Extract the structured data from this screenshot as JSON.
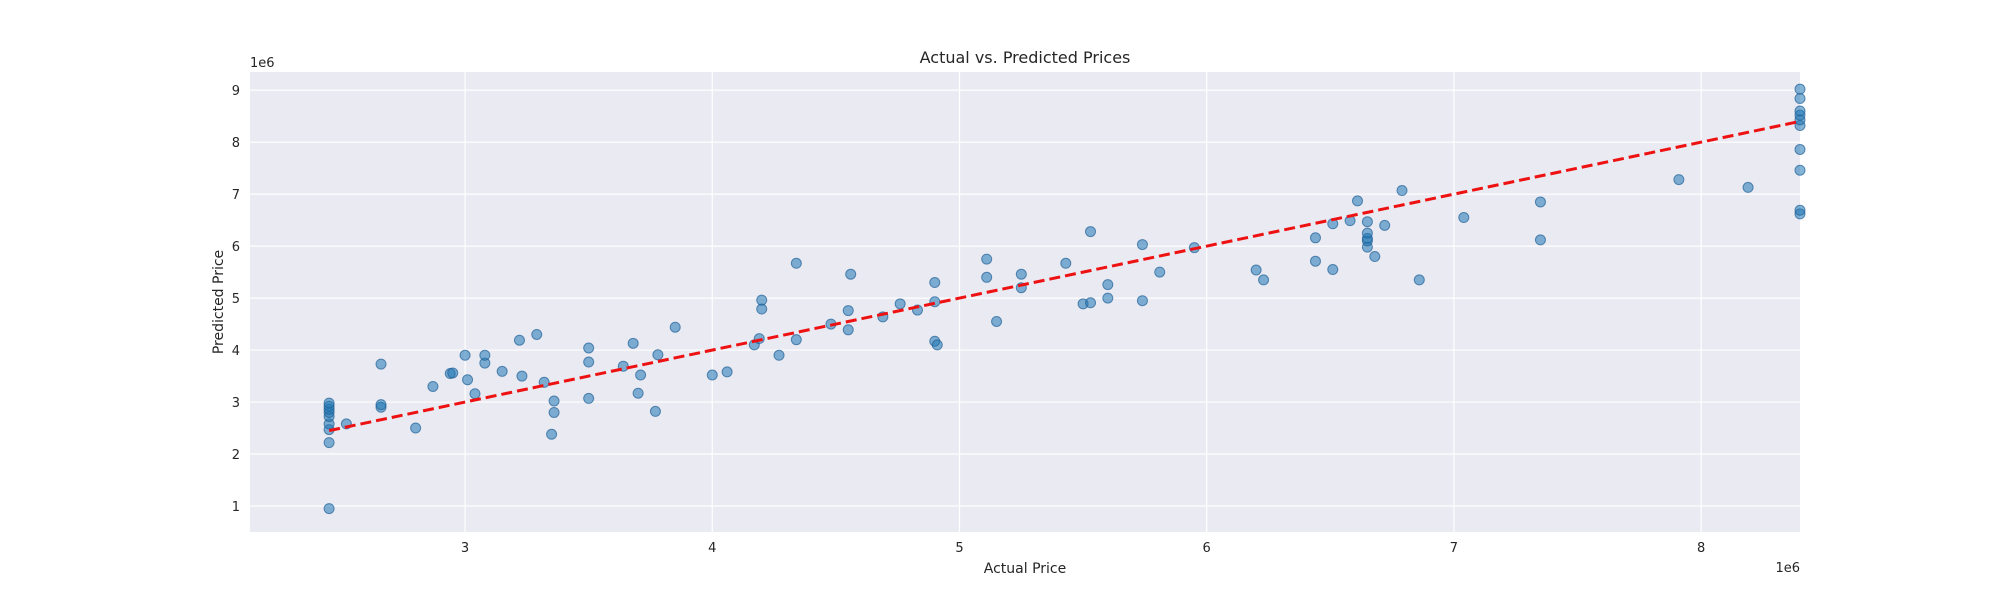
{
  "chart_data": {
    "type": "scatter",
    "title": "Actual vs. Predicted Prices",
    "xlabel": "Actual Price",
    "ylabel": "Predicted Price",
    "x_offset_label": "1e6",
    "y_offset_label": "1e6",
    "xlim": [
      2.13,
      8.4
    ],
    "ylim": [
      0.5,
      9.35
    ],
    "x_ticks": [
      3,
      4,
      5,
      6,
      7,
      8
    ],
    "y_ticks": [
      1,
      2,
      3,
      4,
      5,
      6,
      7,
      8,
      9
    ],
    "grid": true,
    "legend": "none",
    "colors": {
      "plot_background": "#eaeaf2",
      "grid": "#ffffff",
      "points": "#1f77b4",
      "points_stroke": "#1f5f96",
      "fit_line": "#ee1111",
      "text": "#262626"
    },
    "series": [
      {
        "kind": "points",
        "points": [
          {
            "x": 2.45,
            "y": 0.95
          },
          {
            "x": 2.45,
            "y": 2.22
          },
          {
            "x": 2.45,
            "y": 2.47
          },
          {
            "x": 2.45,
            "y": 2.58
          },
          {
            "x": 2.45,
            "y": 2.72
          },
          {
            "x": 2.45,
            "y": 2.8
          },
          {
            "x": 2.45,
            "y": 2.86
          },
          {
            "x": 2.45,
            "y": 2.92
          },
          {
            "x": 2.45,
            "y": 2.98
          },
          {
            "x": 2.52,
            "y": 2.58
          },
          {
            "x": 2.66,
            "y": 2.9
          },
          {
            "x": 2.66,
            "y": 2.95
          },
          {
            "x": 2.66,
            "y": 3.73
          },
          {
            "x": 2.8,
            "y": 2.5
          },
          {
            "x": 2.87,
            "y": 3.3
          },
          {
            "x": 2.94,
            "y": 3.55
          },
          {
            "x": 2.95,
            "y": 3.56
          },
          {
            "x": 3.0,
            "y": 3.9
          },
          {
            "x": 3.01,
            "y": 3.43
          },
          {
            "x": 3.04,
            "y": 3.16
          },
          {
            "x": 3.08,
            "y": 3.75
          },
          {
            "x": 3.08,
            "y": 3.9
          },
          {
            "x": 3.15,
            "y": 3.59
          },
          {
            "x": 3.22,
            "y": 4.19
          },
          {
            "x": 3.23,
            "y": 3.5
          },
          {
            "x": 3.29,
            "y": 4.3
          },
          {
            "x": 3.32,
            "y": 3.38
          },
          {
            "x": 3.35,
            "y": 2.38
          },
          {
            "x": 3.36,
            "y": 2.8
          },
          {
            "x": 3.36,
            "y": 3.02
          },
          {
            "x": 3.5,
            "y": 3.07
          },
          {
            "x": 3.5,
            "y": 3.77
          },
          {
            "x": 3.5,
            "y": 4.04
          },
          {
            "x": 3.64,
            "y": 3.69
          },
          {
            "x": 3.68,
            "y": 4.13
          },
          {
            "x": 3.7,
            "y": 3.17
          },
          {
            "x": 3.71,
            "y": 3.52
          },
          {
            "x": 3.77,
            "y": 2.82
          },
          {
            "x": 3.78,
            "y": 3.91
          },
          {
            "x": 3.85,
            "y": 4.44
          },
          {
            "x": 4.0,
            "y": 3.52
          },
          {
            "x": 4.06,
            "y": 3.58
          },
          {
            "x": 4.17,
            "y": 4.1
          },
          {
            "x": 4.19,
            "y": 4.22
          },
          {
            "x": 4.2,
            "y": 4.79
          },
          {
            "x": 4.2,
            "y": 4.96
          },
          {
            "x": 4.27,
            "y": 3.9
          },
          {
            "x": 4.34,
            "y": 4.2
          },
          {
            "x": 4.34,
            "y": 5.67
          },
          {
            "x": 4.48,
            "y": 4.5
          },
          {
            "x": 4.55,
            "y": 4.39
          },
          {
            "x": 4.55,
            "y": 4.76
          },
          {
            "x": 4.56,
            "y": 5.46
          },
          {
            "x": 4.69,
            "y": 4.64
          },
          {
            "x": 4.76,
            "y": 4.89
          },
          {
            "x": 4.83,
            "y": 4.77
          },
          {
            "x": 4.9,
            "y": 4.93
          },
          {
            "x": 4.9,
            "y": 4.17
          },
          {
            "x": 4.91,
            "y": 4.1
          },
          {
            "x": 4.9,
            "y": 5.3
          },
          {
            "x": 5.11,
            "y": 5.4
          },
          {
            "x": 5.11,
            "y": 5.75
          },
          {
            "x": 5.15,
            "y": 4.55
          },
          {
            "x": 5.25,
            "y": 5.2
          },
          {
            "x": 5.25,
            "y": 5.46
          },
          {
            "x": 5.43,
            "y": 5.67
          },
          {
            "x": 5.5,
            "y": 4.89
          },
          {
            "x": 5.53,
            "y": 4.91
          },
          {
            "x": 5.53,
            "y": 6.28
          },
          {
            "x": 5.6,
            "y": 5.0
          },
          {
            "x": 5.6,
            "y": 5.26
          },
          {
            "x": 5.74,
            "y": 4.95
          },
          {
            "x": 5.74,
            "y": 6.03
          },
          {
            "x": 5.81,
            "y": 5.5
          },
          {
            "x": 5.95,
            "y": 5.97
          },
          {
            "x": 6.2,
            "y": 5.54
          },
          {
            "x": 6.23,
            "y": 5.35
          },
          {
            "x": 6.44,
            "y": 5.71
          },
          {
            "x": 6.44,
            "y": 6.16
          },
          {
            "x": 6.51,
            "y": 5.55
          },
          {
            "x": 6.51,
            "y": 6.43
          },
          {
            "x": 6.58,
            "y": 6.49
          },
          {
            "x": 6.61,
            "y": 6.87
          },
          {
            "x": 6.65,
            "y": 5.98
          },
          {
            "x": 6.65,
            "y": 6.1
          },
          {
            "x": 6.65,
            "y": 6.15
          },
          {
            "x": 6.65,
            "y": 6.25
          },
          {
            "x": 6.65,
            "y": 6.47
          },
          {
            "x": 6.68,
            "y": 5.8
          },
          {
            "x": 6.72,
            "y": 6.4
          },
          {
            "x": 6.79,
            "y": 7.07
          },
          {
            "x": 6.86,
            "y": 5.35
          },
          {
            "x": 7.04,
            "y": 6.55
          },
          {
            "x": 7.35,
            "y": 6.12
          },
          {
            "x": 7.35,
            "y": 6.85
          },
          {
            "x": 7.91,
            "y": 7.28
          },
          {
            "x": 8.19,
            "y": 7.13
          },
          {
            "x": 8.4,
            "y": 6.62
          },
          {
            "x": 8.4,
            "y": 6.69
          },
          {
            "x": 8.4,
            "y": 7.46
          },
          {
            "x": 8.4,
            "y": 7.86
          },
          {
            "x": 8.4,
            "y": 8.32
          },
          {
            "x": 8.4,
            "y": 8.43
          },
          {
            "x": 8.4,
            "y": 8.52
          },
          {
            "x": 8.4,
            "y": 8.6
          },
          {
            "x": 8.4,
            "y": 8.84
          },
          {
            "x": 8.4,
            "y": 9.02
          }
        ]
      },
      {
        "kind": "line",
        "style": "dashed",
        "x": [
          2.45,
          8.4
        ],
        "y": [
          2.45,
          8.4
        ]
      }
    ]
  }
}
